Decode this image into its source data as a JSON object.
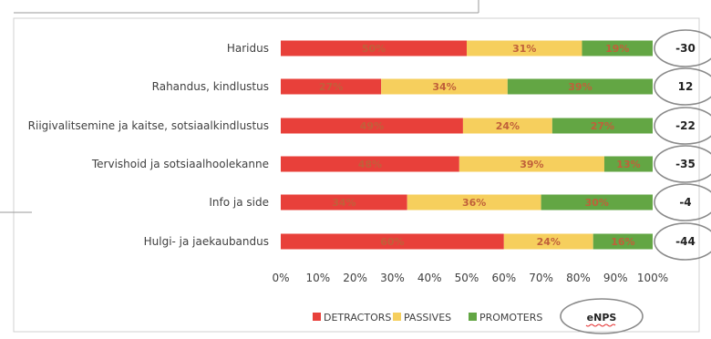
{
  "chart_data": {
    "type": "bar",
    "stacked": true,
    "orientation": "horizontal",
    "categories": [
      "Haridus",
      "Rahandus, kindlustus",
      "Riigivalitsemine ja kaitse, sotsiaalkindlustus",
      "Tervishoid ja sotsiaalhoolekanne",
      "Info ja side",
      "Hulgi- ja jaekaubandus"
    ],
    "series": [
      {
        "name": "DETRACTORS",
        "color": "#e8403a",
        "values": [
          50,
          27,
          49,
          48,
          34,
          60
        ]
      },
      {
        "name": "PASSIVES",
        "color": "#f6cf5d",
        "values": [
          31,
          34,
          24,
          39,
          36,
          24
        ]
      },
      {
        "name": "PROMOTERS",
        "color": "#63a644",
        "values": [
          19,
          39,
          27,
          13,
          30,
          16
        ]
      }
    ],
    "data_label_suffix": "%",
    "xlim": [
      0,
      100
    ],
    "xticks": [
      "0%",
      "10%",
      "20%",
      "30%",
      "40%",
      "50%",
      "60%",
      "70%",
      "80%",
      "90%",
      "100%"
    ],
    "enps_values": [
      "-30",
      "12",
      "-22",
      "-35",
      "-4",
      "-44"
    ],
    "enps_legend_label": "eNPS",
    "legend_position": "bottom",
    "grid": false
  }
}
